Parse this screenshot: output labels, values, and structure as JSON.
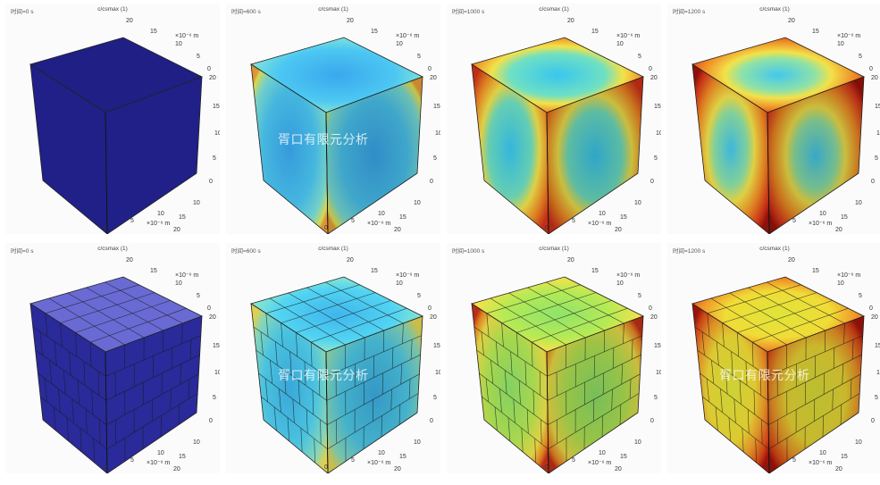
{
  "variable_label": "c/csmax (1)",
  "axis_unit": "×10⁻⁶ m",
  "tick_labels": {
    "t0": "0",
    "t5": "5",
    "t10": "10",
    "t15": "15",
    "t20": "20"
  },
  "watermark": "胥口有限元分析",
  "rows": [
    {
      "name": "single-particle-row",
      "panels": [
        {
          "time": "时间=0 s",
          "stage": 0
        },
        {
          "time": "时间=600 s",
          "stage": 1
        },
        {
          "time": "时间=1000 s",
          "stage": 2
        },
        {
          "time": "时间=1200 s",
          "stage": 3
        }
      ]
    },
    {
      "name": "multi-particle-row",
      "panels": [
        {
          "time": "时间=0 s",
          "stage": 0
        },
        {
          "time": "时间=600 s",
          "stage": 1
        },
        {
          "time": "时间=1000 s",
          "stage": 2
        },
        {
          "time": "时间=1200 s",
          "stage": 3
        }
      ]
    }
  ],
  "colors": {
    "initial_blue": "#22228a",
    "cyan": "#35c8f0",
    "yellow": "#f2e24a",
    "orange": "#f08a24",
    "red": "#c81e10"
  }
}
